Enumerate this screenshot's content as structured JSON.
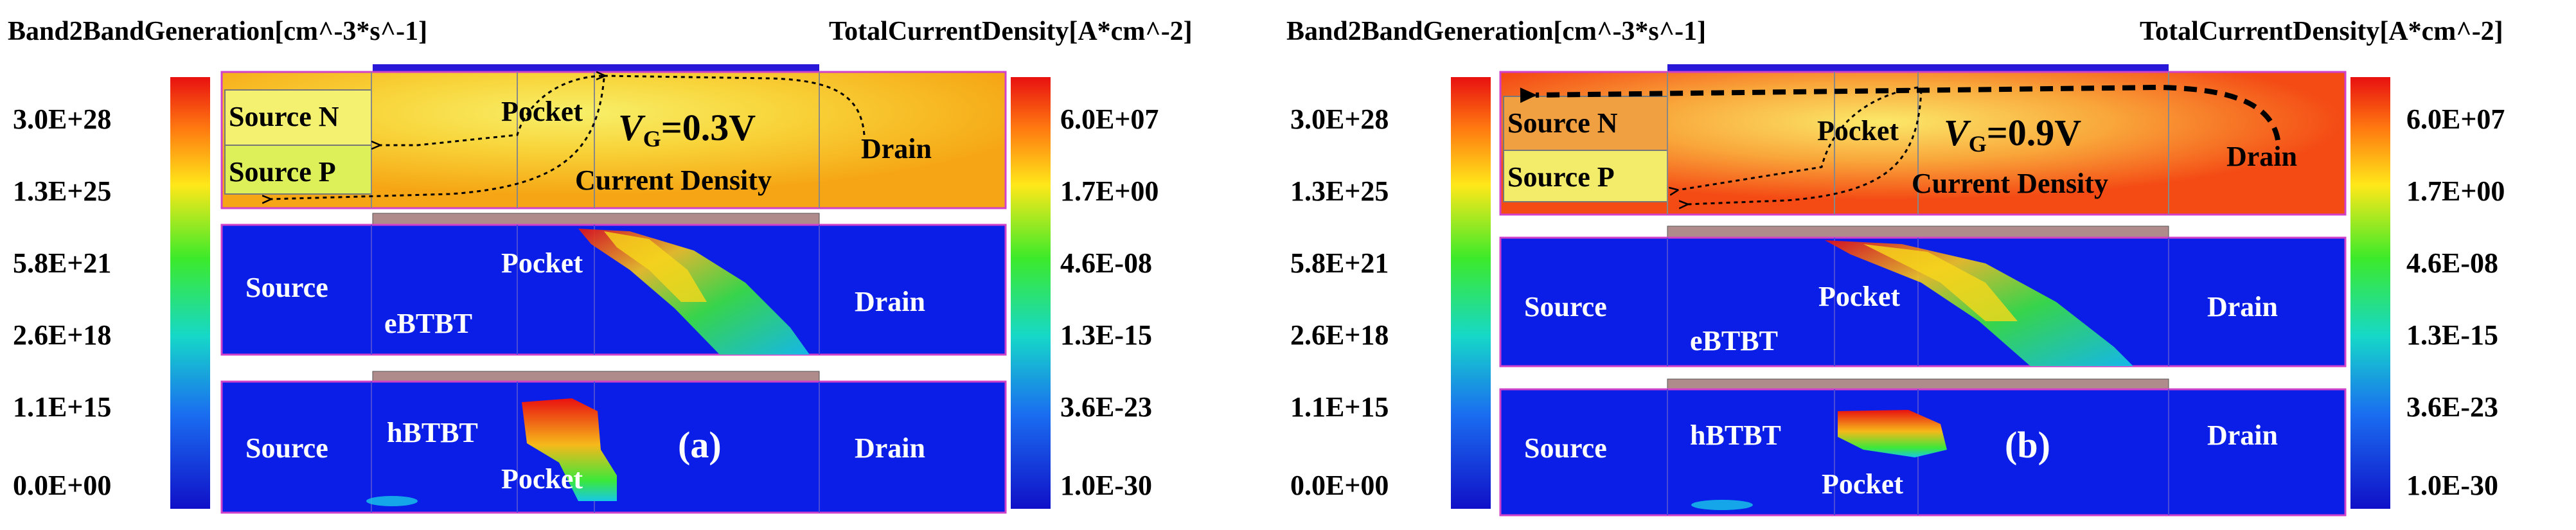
{
  "panels": [
    {
      "id": "a",
      "label": "(a)",
      "left_colorbar": {
        "title": "Band2BandGeneration[cm^-3*s^-1]",
        "ticks": [
          "3.0E+28",
          "1.3E+25",
          "5.8E+21",
          "2.6E+18",
          "1.1E+15",
          "0.0E+00"
        ]
      },
      "right_colorbar": {
        "title": "TotalCurrentDensity[A*cm^-2]",
        "ticks": [
          "6.0E+07",
          "1.7E+00",
          "4.6E-08",
          "1.3E-15",
          "3.6E-23",
          "1.0E-30"
        ]
      },
      "top_map": {
        "source_n": "Source N",
        "source_p": "Source P",
        "pocket": "Pocket",
        "vg_prefix": "V",
        "vg_sub": "G",
        "vg_value": "=0.3V",
        "current_density": "Current Density",
        "drain": "Drain"
      },
      "mid_map": {
        "source": "Source",
        "ebtbt": "eBTBT",
        "pocket": "Pocket",
        "drain": "Drain"
      },
      "bot_map": {
        "source": "Source",
        "hbtbt": "hBTBT",
        "pocket": "Pocket",
        "drain": "Drain"
      }
    },
    {
      "id": "b",
      "label": "(b)",
      "left_colorbar": {
        "title": "Band2BandGeneration[cm^-3*s^-1]",
        "ticks": [
          "3.0E+28",
          "1.3E+25",
          "5.8E+21",
          "2.6E+18",
          "1.1E+15",
          "0.0E+00"
        ]
      },
      "right_colorbar": {
        "title": "TotalCurrentDensity[A*cm^-2]",
        "ticks": [
          "6.0E+07",
          "1.7E+00",
          "4.6E-08",
          "1.3E-15",
          "3.6E-23",
          "1.0E-30"
        ]
      },
      "top_map": {
        "source_n": "Source N",
        "source_p": "Source P",
        "pocket": "Pocket",
        "vg_prefix": "V",
        "vg_sub": "G",
        "vg_value": "=0.9V",
        "current_density": "Current Density",
        "drain": "Drain"
      },
      "mid_map": {
        "source": "Source",
        "ebtbt": "eBTBT",
        "pocket": "Pocket",
        "drain": "Drain"
      },
      "bot_map": {
        "source": "Source",
        "hbtbt": "hBTBT",
        "pocket": "Pocket",
        "drain": "Drain"
      }
    }
  ],
  "colors": {
    "blue": "#0a1ee8",
    "orange": "#f6a614",
    "red_orange": "#f44a14",
    "gate": "#b08b8b",
    "gate_top": "#2a18d8"
  }
}
